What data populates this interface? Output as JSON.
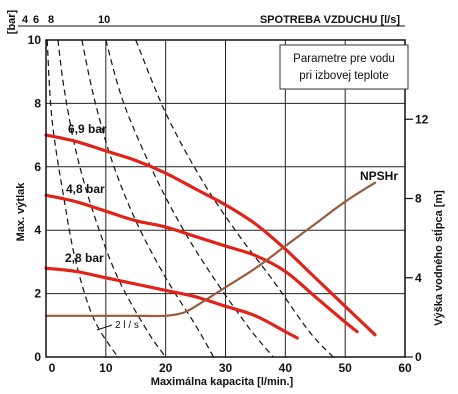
{
  "chart_data": {
    "type": "line",
    "title": "",
    "xlabel": "Maximálna kapacita [l/min.]",
    "ylabel": "Max. výtlak",
    "y_unit_label": "[bar]",
    "y2label": "Výška vodného stĺpca [m]",
    "xlim": [
      0,
      60
    ],
    "ylim": [
      0,
      10
    ],
    "y2lim": [
      0,
      16
    ],
    "x_ticks": [
      0,
      10,
      20,
      30,
      40,
      50,
      60
    ],
    "y_ticks": [
      0,
      2,
      4,
      6,
      8,
      10
    ],
    "y2_ticks": [
      0,
      4,
      8,
      12
    ],
    "grid": true,
    "top_axis": {
      "label": "SPOTREBA VZDUCHU [l/s]",
      "ticks": [
        "4",
        "6",
        "8",
        "10"
      ]
    },
    "note_lines": [
      "Parametre pre vodu",
      "pri izbovej teplote"
    ],
    "flow_label": "2 l / s",
    "series": [
      {
        "name": "6,9 bar",
        "color": "#e2231a",
        "x": [
          0,
          5,
          10,
          15,
          20,
          25,
          30,
          35,
          40,
          45,
          50,
          55
        ],
        "y": [
          7.0,
          6.8,
          6.5,
          6.2,
          5.8,
          5.3,
          4.8,
          4.2,
          3.4,
          2.5,
          1.6,
          0.7
        ]
      },
      {
        "name": "4,8 bar",
        "color": "#e2231a",
        "x": [
          0,
          5,
          10,
          15,
          20,
          25,
          30,
          35,
          40,
          45,
          50,
          52
        ],
        "y": [
          5.1,
          4.9,
          4.6,
          4.3,
          4.1,
          3.8,
          3.5,
          3.2,
          2.7,
          1.9,
          1.1,
          0.8
        ]
      },
      {
        "name": "2,8 bar",
        "color": "#e2231a",
        "x": [
          0,
          5,
          10,
          15,
          20,
          25,
          30,
          35,
          40,
          42
        ],
        "y": [
          2.8,
          2.7,
          2.5,
          2.3,
          2.1,
          1.9,
          1.6,
          1.3,
          0.8,
          0.6
        ]
      },
      {
        "name": "NPSHr",
        "color": "#9b5a3c",
        "x": [
          0,
          5,
          10,
          15,
          20,
          23,
          25,
          30,
          35,
          40,
          45,
          50,
          55
        ],
        "y": [
          1.3,
          1.3,
          1.3,
          1.3,
          1.3,
          1.4,
          1.6,
          2.2,
          2.8,
          3.5,
          4.2,
          4.9,
          5.5
        ]
      }
    ],
    "air_consumption_curves": [
      {
        "label": "2 l / s",
        "x": [
          0.2,
          1,
          3,
          5,
          8,
          12
        ],
        "y": [
          10,
          7.5,
          5.0,
          3.0,
          1.2,
          0
        ]
      },
      {
        "label": "4",
        "x": [
          2,
          3,
          5,
          8,
          12,
          17,
          20
        ],
        "y": [
          10,
          8.5,
          6.5,
          4.5,
          2.5,
          0.8,
          0
        ]
      },
      {
        "label": "6",
        "x": [
          6,
          8,
          11,
          15,
          20,
          25,
          28
        ],
        "y": [
          10,
          8.2,
          6.2,
          4.3,
          2.5,
          1.0,
          0
        ]
      },
      {
        "label": "8",
        "x": [
          10,
          13,
          18,
          23,
          28,
          34,
          38
        ],
        "y": [
          10,
          8.0,
          5.8,
          4.0,
          2.5,
          0.9,
          0
        ]
      },
      {
        "label": "10",
        "x": [
          15,
          20,
          26,
          32,
          38,
          44,
          48
        ],
        "y": [
          10,
          7.7,
          5.6,
          3.9,
          2.4,
          0.8,
          0
        ]
      }
    ]
  }
}
